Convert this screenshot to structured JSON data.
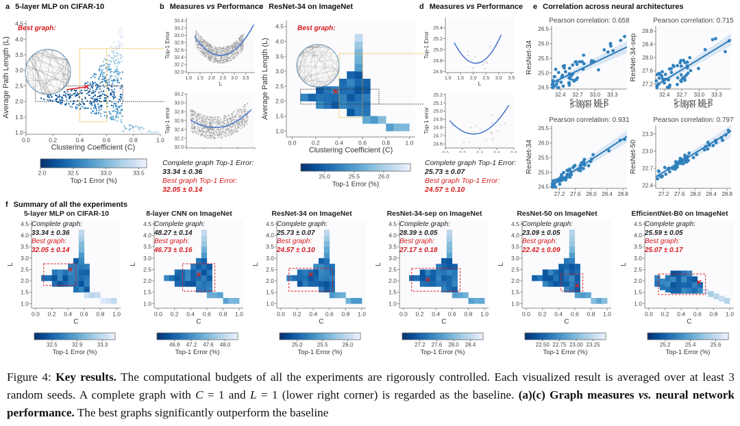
{
  "colors": {
    "dark_blue": "#08306b",
    "mid_blue": "#2171b5",
    "light_blue": "#c6dbef",
    "accent_red": "#d7191c",
    "scatter_blue": "#3182bd",
    "gold": "#e6a817"
  },
  "panel_a": {
    "letter": "a",
    "title": "5-layer MLP on CIFAR-10",
    "best_graph_label": "Best graph:",
    "xlabel": "Clustering Coefficient (C)",
    "ylabel": "Average Path Length (L)",
    "xticks": [
      "0.0",
      "0.2",
      "0.4",
      "0.6",
      "0.8",
      "1.0"
    ],
    "yticks": [
      "1.0",
      "1.5",
      "2.0",
      "2.5",
      "3.0",
      "3.5",
      "4.0",
      "4.5"
    ],
    "colorbar": {
      "ticks": [
        "32.0",
        "32.5",
        "33.0",
        "33.5"
      ],
      "label": "Top-1 Error (%)"
    }
  },
  "panel_b": {
    "letter": "b",
    "title_parts": [
      "Measures ",
      "vs",
      " Performance"
    ],
    "top": {
      "ylabel": "Top-1 Error",
      "xlabel": "L",
      "xticks": [
        "1.0",
        "1.5",
        "2.0",
        "2.5",
        "3.0",
        "3.5"
      ],
      "yticks": [
        "32.0",
        "32.2",
        "32.4",
        "32.6",
        "32.8",
        "33.0",
        "33.2",
        "33.4"
      ]
    },
    "bottom": {
      "ylabel": "Top-1 error",
      "xlabel": "C",
      "xticks": [
        "0.0",
        "0.2",
        "0.4",
        "0.6",
        "0.8"
      ],
      "yticks": [
        "32.0",
        "32.2",
        "32.4",
        "32.6",
        "32.8",
        "33.0",
        "33.2"
      ]
    },
    "complete_label": "Complete graph Top-1 Error:",
    "complete_value": "33.34 ± 0.36",
    "best_label": "Best graph Top-1 Error:",
    "best_value": "32.05 ± 0.14"
  },
  "panel_c": {
    "letter": "c",
    "title": "ResNet-34 on ImageNet",
    "best_graph_label": "Best graph:",
    "xlabel": "Clustering Coefficient (C)",
    "ylabel": "Average Path Length (L)",
    "xticks": [
      "0.0",
      "0.2",
      "0.4",
      "0.6",
      "0.8",
      "1.0"
    ],
    "yticks": [
      "1.0",
      "1.5",
      "2.0",
      "2.5",
      "3.0",
      "3.5",
      "4.0",
      "4.5"
    ],
    "colorbar": {
      "ticks": [
        "25.0",
        "25.5",
        "26.0"
      ],
      "label": "Top-1 Error (%)"
    }
  },
  "panel_d": {
    "letter": "d",
    "title_parts": [
      "Measures ",
      "vs",
      " Performance"
    ],
    "top": {
      "ylabel": "Top-1 Error",
      "xlabel": "L",
      "xticks": [
        "1.0",
        "1.5",
        "2.0",
        "2.5",
        "3.0",
        "3.5"
      ],
      "yticks": [
        "24.6",
        "24.8",
        "25.0",
        "25.2",
        "25.4"
      ]
    },
    "bottom": {
      "ylabel": "Top-1 error",
      "xlabel": "C",
      "xticks": [
        "0.0",
        "0.2",
        "0.4",
        "0.6",
        "0.8"
      ],
      "yticks": [
        "24.6",
        "24.7",
        "24.8",
        "24.9",
        "25.0",
        "25.1",
        "25.2"
      ]
    },
    "complete_label": "Complete graph Top-1 Error:",
    "complete_value": "25.73 ± 0.07",
    "best_label": "Best graph Top-1 Error:",
    "best_value": "24.57 ± 0.10"
  },
  "panel_e": {
    "letter": "e",
    "title": "Correlation across neural architectures",
    "plots": [
      {
        "title": "Pearson correlation: 0.658",
        "xlabel": "5-layer MLP",
        "ylabel": "ResNet-34",
        "xticks": [
          "32.4",
          "32.7",
          "33.0",
          "33.3"
        ],
        "yticks": [
          "24.5",
          "25.0",
          "25.5",
          "26.0",
          "26.5"
        ]
      },
      {
        "title": "Pearson correlation: 0.715",
        "xlabel": "5-layer MLP",
        "ylabel": "ResNet-34-sep",
        "xticks": [
          "32.4",
          "32.7",
          "33.0",
          "33.3"
        ],
        "yticks": [
          "27.2",
          "27.6",
          "28.0",
          "28.4",
          "28.8"
        ]
      },
      {
        "title": "Pearson correlation: 0.931",
        "xlabel": "ResNet-34-sep",
        "ylabel": "ResNet-34",
        "xticks": [
          "27.2",
          "27.6",
          "28.0",
          "28.4",
          "28.8"
        ],
        "yticks": [
          "24.5",
          "25.0",
          "25.5",
          "26.0",
          "26.5"
        ]
      },
      {
        "title": "Pearson correlation: 0.797",
        "xlabel": "ResNet-34-sep",
        "ylabel": "ResNet-50",
        "xticks": [
          "27.2",
          "27.6",
          "28.0",
          "28.4",
          "28.8"
        ],
        "yticks": [
          "22.4",
          "22.7",
          "23.0",
          "23.3"
        ]
      }
    ]
  },
  "panel_f": {
    "letter": "f",
    "title": "Summary of all the experiments",
    "xlabel": "C",
    "ylabel": "L",
    "xticks": [
      "0.0",
      "0.2",
      "0.4",
      "0.6",
      "0.8",
      "1.0"
    ],
    "yticks": [
      "1.0",
      "1.5",
      "2.0",
      "2.5",
      "3.0",
      "3.5",
      "4.0",
      "4.5"
    ],
    "complete_label": "Complete graph:",
    "best_label": "Best graph:",
    "colorbar_label": "Top-1 Error (%)",
    "experiments": [
      {
        "title": "5-layer MLP on CIFAR-10",
        "complete_value": "33.34 ± 0.36",
        "best_value": "32.05 ± 0.14",
        "colorbar_ticks": [
          "32.5",
          "32.9",
          "33.3"
        ],
        "best_point": {
          "c": 0.43,
          "l": 2.5
        }
      },
      {
        "title": "8-layer CNN on ImageNet",
        "complete_value": "48.27 ± 0.14",
        "best_value": "46.73 ± 0.16",
        "colorbar_ticks": [
          "46.8",
          "47.2",
          "47.6",
          "48.0"
        ],
        "best_point": {
          "c": 0.5,
          "l": 2.28
        }
      },
      {
        "title": "ResNet-34 on ImageNet",
        "complete_value": "25.73 ± 0.07",
        "best_value": "24.57 ± 0.10",
        "colorbar_ticks": [
          "25.0",
          "25.5",
          "26.0"
        ],
        "best_point": {
          "c": 0.37,
          "l": 2.28
        }
      },
      {
        "title": "ResNet-34-sep on ImageNet",
        "complete_value": "28.39 ± 0.05",
        "best_value": "27.17 ± 0.18",
        "colorbar_ticks": [
          "27.2",
          "27.6",
          "28.0",
          "28.4"
        ],
        "best_point": {
          "c": 0.3,
          "l": 2.05
        }
      },
      {
        "title": "ResNet-50 on ImageNet",
        "complete_value": "23.09 ± 0.05",
        "best_value": "22.42 ± 0.09",
        "colorbar_ticks": [
          "22.50",
          "22.75",
          "23.00",
          "23.25"
        ],
        "best_point": {
          "c": 0.63,
          "l": 1.8
        }
      },
      {
        "title": "EfficientNet-B0 on ImageNet",
        "complete_value": "25.59 ± 0.05",
        "best_value": "25.07 ± 0.17",
        "colorbar_ticks": [
          "25.2",
          "25.4",
          "25.6"
        ],
        "best_point": {
          "c": 0.62,
          "l": 1.95
        }
      }
    ]
  },
  "caption": {
    "prefix": "Figure 4: ",
    "bold1": "Key results.",
    "text1": " The computational budgets of all the experiments are rigorously controlled. Each visualized result is averaged over at least 3 random seeds. A complete graph with ",
    "var_c": "C",
    "text2": " = 1 and ",
    "var_l": "L",
    "text3": " = 1 (lower right corner) is regarded as the baseline. ",
    "bold2": "(a)(c) Graph measures ",
    "bold2_italic": "vs.",
    "bold3": " neural network performance.",
    "text4": " The best graphs significantly outperform the baseline"
  }
}
